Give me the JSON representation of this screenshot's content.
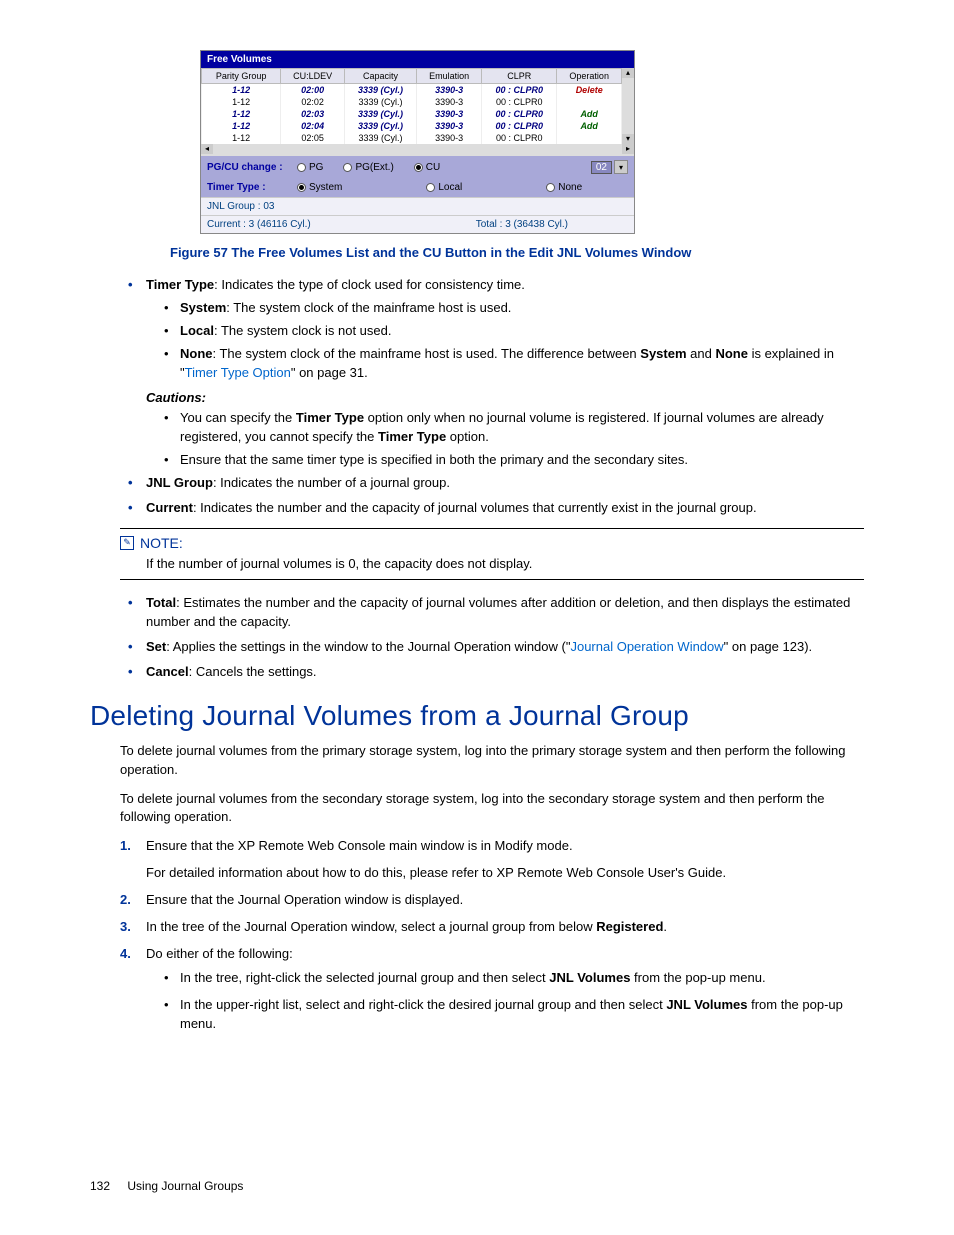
{
  "figure": {
    "window_title": "Free Volumes",
    "headers": [
      "Parity Group",
      "CU:LDEV",
      "Capacity",
      "Emulation",
      "CLPR",
      "Operation"
    ],
    "rows": [
      {
        "bold": true,
        "pg": "1-12",
        "cu": "02:00",
        "cap": "3339 (Cyl.)",
        "emu": "3390-3",
        "clpr": "00 : CLPR0",
        "op": "Delete",
        "op_class": "op-del"
      },
      {
        "bold": false,
        "pg": "1-12",
        "cu": "02:02",
        "cap": "3339 (Cyl.)",
        "emu": "3390-3",
        "clpr": "00 : CLPR0",
        "op": ""
      },
      {
        "bold": true,
        "pg": "1-12",
        "cu": "02:03",
        "cap": "3339 (Cyl.)",
        "emu": "3390-3",
        "clpr": "00 : CLPR0",
        "op": "Add",
        "op_class": "op-add"
      },
      {
        "bold": true,
        "pg": "1-12",
        "cu": "02:04",
        "cap": "3339 (Cyl.)",
        "emu": "3390-3",
        "clpr": "00 : CLPR0",
        "op": "Add",
        "op_class": "op-add"
      },
      {
        "bold": false,
        "pg": "1-12",
        "cu": "02:05",
        "cap": "3339 (Cyl.)",
        "emu": "3390-3",
        "clpr": "00 : CLPR0",
        "op": ""
      }
    ],
    "pgcu_label": "PG/CU change :",
    "pgcu_options": [
      {
        "label": "PG",
        "selected": false
      },
      {
        "label": "PG(Ext.)",
        "selected": false
      },
      {
        "label": "CU",
        "selected": true
      }
    ],
    "cu_value": "02",
    "timer_label": "Timer Type :",
    "timer_options": [
      {
        "label": "System",
        "selected": true
      },
      {
        "label": "Local",
        "selected": false
      },
      {
        "label": "None",
        "selected": false
      }
    ],
    "jnl_group": "JNL Group : 03",
    "current": "Current : 3 (46116 Cyl.)",
    "total": "Total : 3 (36438 Cyl.)",
    "caption": "Figure 57 The Free Volumes List and the CU Button in the Edit JNL Volumes Window"
  },
  "bullets": {
    "timer_type_intro": ": Indicates the type of clock used for consistency time.",
    "system": ": The system clock of the mainframe host is used.",
    "local": ": The system clock is not used.",
    "none_a": ": The system clock of the mainframe host is used. The difference between ",
    "none_b": " is explained in \"",
    "none_link": "Timer Type Option",
    "none_c": "\" on page 31.",
    "cautions_label": "Cautions:",
    "caut1_a": "You can specify the ",
    "caut1_b": " option only when no journal volume is registered. If journal volumes are already registered, you cannot specify the ",
    "caut1_c": " option.",
    "caut2": "Ensure that the same timer type is specified in both the primary and the secondary sites.",
    "jnl_group": ": Indicates the number of a journal group.",
    "current": ": Indicates the number and the capacity of journal volumes that currently exist in the journal group.",
    "note_head": "NOTE:",
    "note_text": "If the number of journal volumes is 0, the capacity does not display.",
    "total": ": Estimates the number and the capacity of journal volumes after addition or deletion, and then displays the estimated number and the capacity.",
    "set_a": ": Applies the settings in the window to the Journal Operation window (\"",
    "set_link": "Journal Operation Window",
    "set_b": "\" on page 123).",
    "cancel": ": Cancels the settings."
  },
  "labels": {
    "timer_type": "Timer Type",
    "system": "System",
    "local": "Local",
    "none": "None",
    "and": " and ",
    "jnl_group": "JNL Group",
    "current": "Current",
    "total": "Total",
    "set": "Set",
    "cancel": "Cancel",
    "registered": "Registered",
    "jnl_volumes": "JNL Volumes"
  },
  "section": {
    "heading": "Deleting Journal Volumes from a Journal Group",
    "p1": "To delete journal volumes from the primary storage system, log into the primary storage system and then perform the following operation.",
    "p2": "To delete journal volumes from the secondary storage system, log into the secondary storage system and then perform the following operation.",
    "s1": "Ensure that the XP Remote Web Console main window is in Modify mode.",
    "s1b": "For detailed information about how to do this, please refer to XP Remote Web Console User's Guide.",
    "s2": "Ensure that the Journal Operation window is displayed.",
    "s3a": "In the tree of the Journal Operation window, select a journal group from below ",
    "s3b": ".",
    "s4": "Do either of the following:",
    "s4a_1": "In the tree, right-click the selected journal group and then select ",
    "s4a_2": " from the pop-up menu.",
    "s4b_1": "In the upper-right list, select and right-click the desired journal group and then select ",
    "s4b_2": " from the pop-up menu."
  },
  "footer": {
    "page": "132",
    "chapter": "Using Journal Groups"
  }
}
